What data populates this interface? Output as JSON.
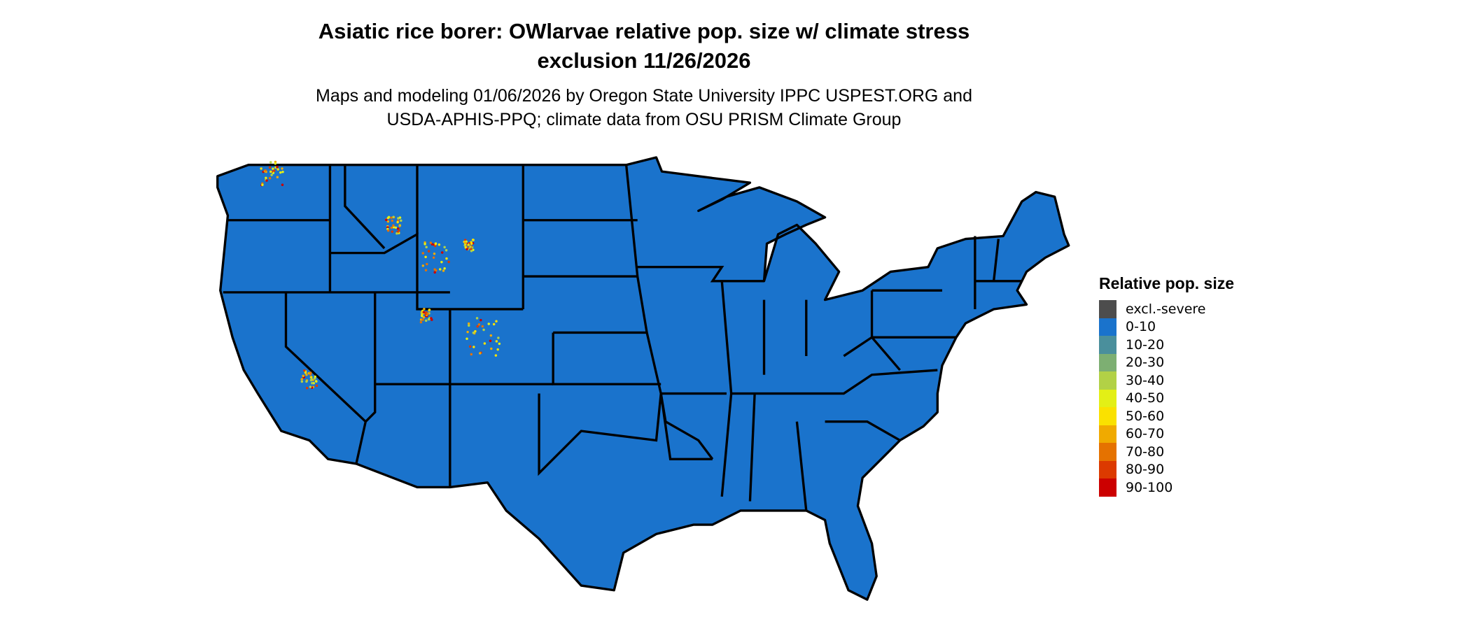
{
  "title_line1": "Asiatic rice borer: OWlarvae relative pop. size w/ climate stress",
  "title_line2": "exclusion 11/26/2026",
  "subtitle_line1": "Maps and modeling 01/06/2026 by Oregon State University IPPC USPEST.ORG and",
  "subtitle_line2": "USDA-APHIS-PPQ; climate data from OSU PRISM Climate Group",
  "map": {
    "fill_color": "#1a73cc",
    "border_color": "#000000"
  },
  "legend": {
    "title": "Relative pop. size",
    "items": [
      {
        "label": "excl.-severe",
        "color": "#4d4d4d"
      },
      {
        "label": "0-10",
        "color": "#1a73cc"
      },
      {
        "label": "10-20",
        "color": "#4a8f9c"
      },
      {
        "label": "20-30",
        "color": "#7daf72"
      },
      {
        "label": "30-40",
        "color": "#b2d146"
      },
      {
        "label": "40-50",
        "color": "#e3ef16"
      },
      {
        "label": "50-60",
        "color": "#fae100"
      },
      {
        "label": "60-70",
        "color": "#f0aa00"
      },
      {
        "label": "70-80",
        "color": "#e57200"
      },
      {
        "label": "80-90",
        "color": "#dc3a00"
      },
      {
        "label": "90-100",
        "color": "#cc0000"
      }
    ]
  }
}
